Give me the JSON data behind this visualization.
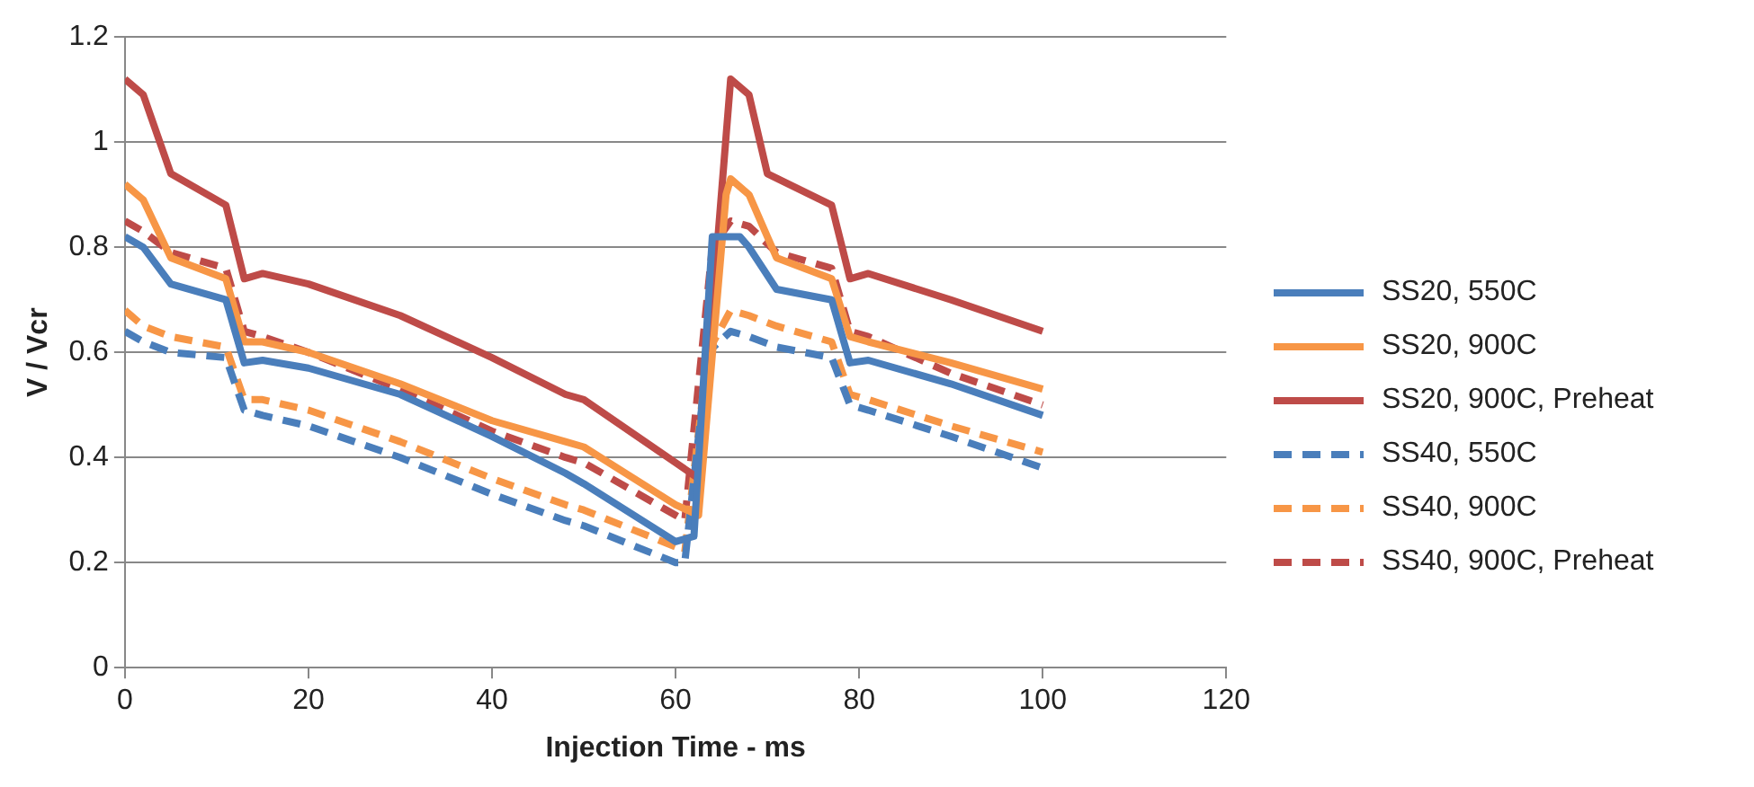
{
  "chart_data": {
    "type": "line",
    "xlabel": "Injection Time - ms",
    "ylabel": "V / Vcr",
    "xlim": [
      0,
      120
    ],
    "xticks": [
      0,
      20,
      40,
      60,
      80,
      100,
      120
    ],
    "ylim": [
      0,
      1.2
    ],
    "yticks": [
      0,
      0.2,
      0.4,
      0.6,
      0.8,
      1,
      1.2
    ],
    "grid": "y",
    "legend": "right",
    "marker": "none",
    "series": [
      {
        "name": "SS20, 550C",
        "color": "#4a7ebb",
        "line_style": "solid",
        "x": [
          0,
          2,
          5,
          11,
          13,
          15,
          20,
          30,
          40,
          48,
          50,
          60,
          62,
          64,
          67,
          68,
          71,
          77,
          79,
          81,
          90,
          100
        ],
        "values": [
          0.82,
          0.8,
          0.73,
          0.7,
          0.58,
          0.585,
          0.57,
          0.52,
          0.44,
          0.37,
          0.35,
          0.24,
          0.25,
          0.82,
          0.82,
          0.8,
          0.72,
          0.7,
          0.58,
          0.585,
          0.54,
          0.48
        ]
      },
      {
        "name": "SS20, 900C",
        "color": "#f79646",
        "line_style": "solid",
        "x": [
          0,
          2,
          5,
          11,
          13,
          15,
          20,
          30,
          40,
          48,
          50,
          60,
          62.5,
          65.5,
          66,
          68,
          71,
          77,
          79,
          81,
          90,
          100
        ],
        "values": [
          0.92,
          0.89,
          0.78,
          0.74,
          0.62,
          0.62,
          0.6,
          0.54,
          0.47,
          0.43,
          0.42,
          0.31,
          0.29,
          0.9,
          0.93,
          0.9,
          0.78,
          0.74,
          0.63,
          0.62,
          0.58,
          0.53
        ]
      },
      {
        "name": "SS20, 900C, Preheat",
        "color": "#be4b48",
        "line_style": "solid",
        "x": [
          0,
          2,
          5,
          11,
          13,
          15,
          20,
          30,
          40,
          48,
          50,
          60,
          62.5,
          66,
          68,
          70,
          77,
          79,
          81,
          90,
          100
        ],
        "values": [
          1.12,
          1.09,
          0.94,
          0.88,
          0.74,
          0.75,
          0.73,
          0.67,
          0.59,
          0.52,
          0.51,
          0.39,
          0.36,
          1.12,
          1.09,
          0.94,
          0.88,
          0.74,
          0.75,
          0.7,
          0.64
        ]
      },
      {
        "name": "SS40, 550C",
        "color": "#4a7ebb",
        "line_style": "dashed",
        "x": [
          0,
          2,
          5,
          11,
          13,
          15,
          20,
          30,
          40,
          48,
          50,
          60,
          61,
          63.5,
          66,
          68,
          71,
          77,
          79,
          81,
          90,
          100
        ],
        "values": [
          0.64,
          0.62,
          0.6,
          0.59,
          0.49,
          0.48,
          0.46,
          0.4,
          0.33,
          0.28,
          0.27,
          0.2,
          0.2,
          0.6,
          0.64,
          0.63,
          0.61,
          0.59,
          0.5,
          0.49,
          0.44,
          0.38
        ]
      },
      {
        "name": "SS40, 900C",
        "color": "#f79646",
        "line_style": "dashed",
        "x": [
          0,
          2,
          5,
          11,
          13,
          15,
          20,
          30,
          40,
          48,
          50,
          60,
          61,
          63.5,
          66,
          68,
          71,
          77,
          79,
          81,
          90,
          100
        ],
        "values": [
          0.68,
          0.65,
          0.63,
          0.61,
          0.51,
          0.51,
          0.49,
          0.43,
          0.36,
          0.31,
          0.3,
          0.23,
          0.22,
          0.6,
          0.68,
          0.67,
          0.65,
          0.62,
          0.52,
          0.51,
          0.46,
          0.41
        ]
      },
      {
        "name": "SS40, 900C, Preheat",
        "color": "#be4b48",
        "line_style": "dashed",
        "x": [
          0,
          2,
          5,
          11,
          13,
          15,
          20,
          30,
          40,
          48,
          50,
          60,
          61,
          64,
          66,
          68,
          71,
          77,
          79,
          81,
          90,
          100
        ],
        "values": [
          0.85,
          0.83,
          0.79,
          0.76,
          0.64,
          0.63,
          0.6,
          0.53,
          0.45,
          0.4,
          0.39,
          0.29,
          0.28,
          0.8,
          0.85,
          0.84,
          0.79,
          0.76,
          0.64,
          0.63,
          0.56,
          0.5
        ]
      }
    ]
  }
}
